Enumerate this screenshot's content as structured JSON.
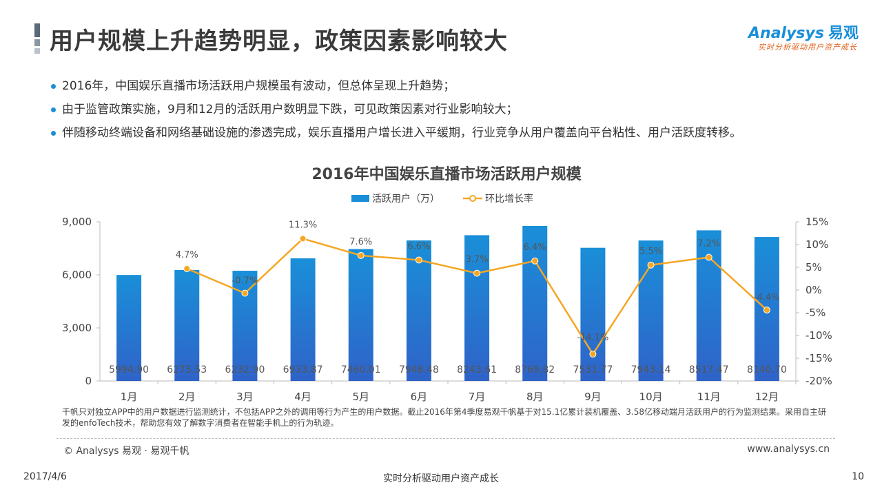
{
  "header": {
    "title": "用户规模上升趋势明显，政策因素影响较大"
  },
  "logo": {
    "brand": "Analysys",
    "brand_cn": "易观",
    "slogan": "实时分析驱动用户资产成长"
  },
  "bullets": [
    "2016年，中国娱乐直播市场活跃用户规模虽有波动，但总体呈现上升趋势；",
    "由于监管政策实施，9月和12月的活跃用户数明显下跌，可见政策因素对行业影响较大；",
    "伴随移动终端设备和网络基础设施的渗透完成，娱乐直播用户增长进入平缓期，行业竞争从用户覆盖向平台粘性、用户活跃度转移。"
  ],
  "colors": {
    "bar": "#1a8fd8",
    "line": "#f5a623",
    "accent": "#1a8fd8"
  },
  "chart_data": {
    "type": "bar",
    "title": "2016年中国娱乐直播市场活跃用户规模",
    "legend_position": "top-center",
    "categories": [
      "1月",
      "2月",
      "3月",
      "4月",
      "5月",
      "6月",
      "7月",
      "8月",
      "9月",
      "10月",
      "11月",
      "12月"
    ],
    "series": [
      {
        "name": "活跃用户（万）",
        "type": "bar",
        "axis": "left",
        "values": [
          5994.9,
          6275.53,
          6232.9,
          6933.87,
          7460.01,
          7948.48,
          8243.61,
          8769.82,
          7531.77,
          7943.14,
          8517.47,
          8140.7
        ],
        "labels": [
          "5994.90",
          "6275.53",
          "6232.90",
          "6933.87",
          "7460.01",
          "7948.48",
          "8243.61",
          "8769.82",
          "7531.77",
          "7943.14",
          "8517.47",
          "8140.70"
        ]
      },
      {
        "name": "环比增长率",
        "type": "line",
        "axis": "right",
        "values": [
          null,
          4.7,
          -0.7,
          11.3,
          7.6,
          6.6,
          3.7,
          6.4,
          -14.1,
          5.5,
          7.2,
          -4.4
        ],
        "labels": [
          "",
          "4.7%",
          "-0.7%",
          "11.3%",
          "7.6%",
          "6.6%",
          "3.7%",
          "6.4%",
          "-14.1%",
          "5.5%",
          "7.2%",
          "-4.4%"
        ]
      }
    ],
    "y_left": {
      "min": 0,
      "max": 9000,
      "ticks": [
        "0",
        "3,000",
        "6,000",
        "9,000"
      ]
    },
    "y_right": {
      "min": -20,
      "max": 15,
      "ticks": [
        "-20%",
        "-15%",
        "-10%",
        "-5%",
        "0%",
        "5%",
        "10%",
        "15%"
      ]
    },
    "grid": false
  },
  "footnote": "千帆只对独立APP中的用户数据进行监测统计，不包括APP之外的调用等行为产生的用户数据。截止2016年第4季度易观千帆基于对15.1亿累计装机覆盖、3.58亿移动端月活跃用户的行为监测结果。采用自主研发的enfoTech技术，帮助您有效了解数字消费者在智能手机上的行为轨迹。",
  "source": {
    "copyright": "© Analysys 易观 · 易观千帆",
    "website": "www.analysys.cn"
  },
  "footer": {
    "date": "2017/4/6",
    "tagline": "实时分析驱动用户资产成长",
    "page": "10"
  }
}
